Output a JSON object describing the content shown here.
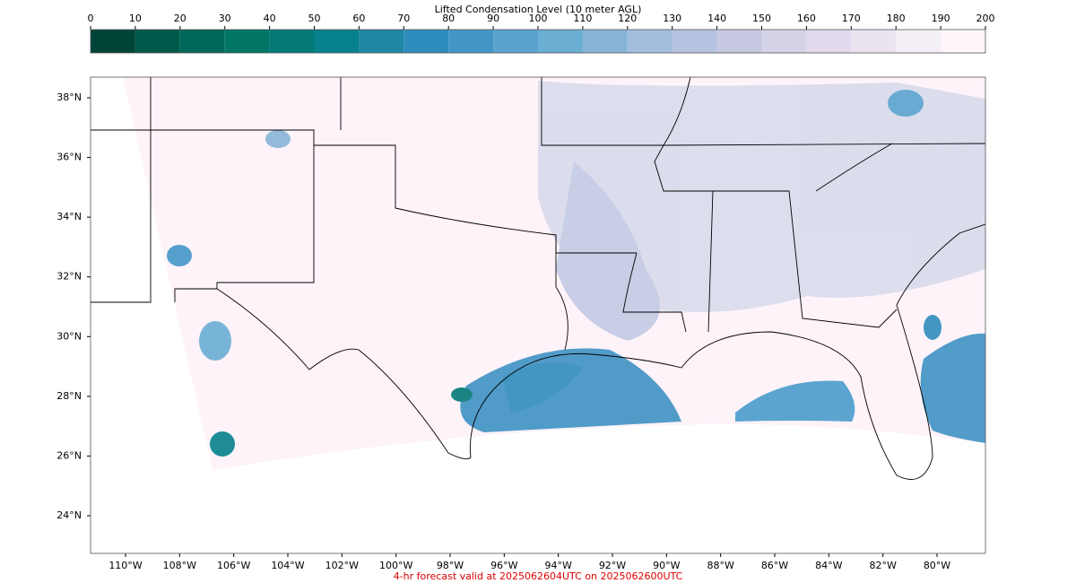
{
  "colorbar": {
    "title": "Lifted Condensation Level (10 meter AGL)",
    "lim": [
      0,
      200
    ],
    "ticks": [
      0,
      10,
      20,
      30,
      40,
      50,
      60,
      70,
      80,
      90,
      100,
      110,
      120,
      130,
      140,
      150,
      160,
      170,
      180,
      190,
      200
    ],
    "colors": [
      "#004438",
      "#005a4b",
      "#00685a",
      "#017667",
      "#047a78",
      "#07818b",
      "#1f86a4",
      "#2f8dbd",
      "#4297c8",
      "#5aa3cf",
      "#6aaed4",
      "#87b4d7",
      "#a3bdde",
      "#b5c2e0",
      "#c7c8e2",
      "#d5d3e8",
      "#e2d9ed",
      "#ebe3f0",
      "#f4eef6",
      "#fff5fa"
    ]
  },
  "map": {
    "lat_labels": [
      "38°N",
      "36°N",
      "34°N",
      "32°N",
      "30°N",
      "28°N",
      "26°N",
      "24°N"
    ],
    "lon_labels": [
      "110°W",
      "108°W",
      "106°W",
      "104°W",
      "102°W",
      "100°W",
      "98°W",
      "96°W",
      "94°W",
      "92°W",
      "90°W",
      "88°W",
      "86°W",
      "84°W",
      "82°W",
      "80°W"
    ]
  },
  "footer": "4-hr forecast valid at 2025062604UTC on 2025062600UTC"
}
